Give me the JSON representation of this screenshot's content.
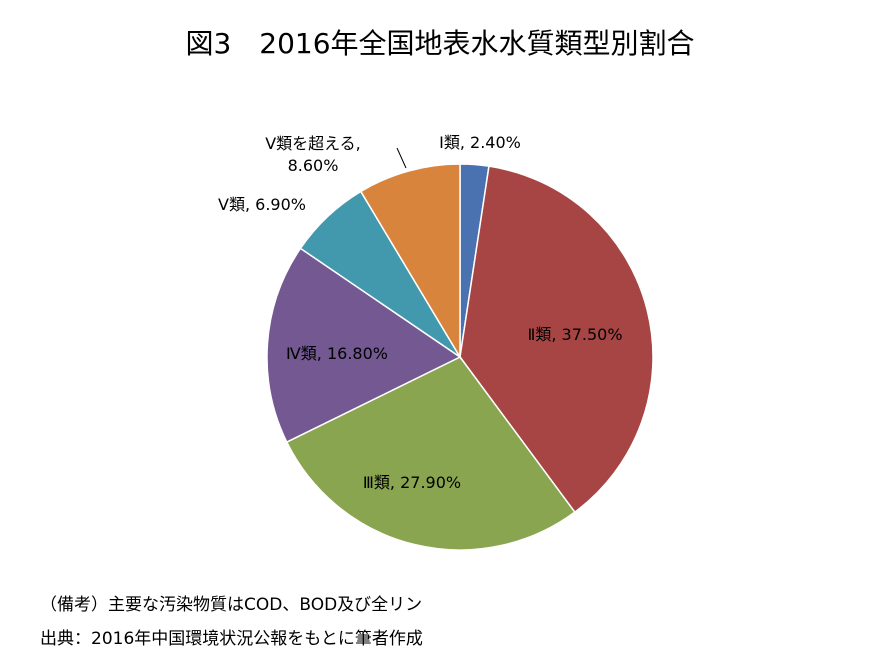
{
  "chart_data": {
    "type": "pie",
    "title": "図3　2016年全国地表水水質類型別割合",
    "values": [
      2.4,
      37.5,
      27.9,
      16.8,
      6.9,
      8.6
    ],
    "value_labels": [
      "Ⅰ類, 2.40%",
      "Ⅱ類, 37.50%",
      "Ⅲ類, 27.90%",
      "Ⅳ類, 16.80%",
      "Ⅴ類, 6.90%",
      "Ⅴ類を超える,\n8.60%"
    ],
    "colors": [
      "#4a72b0",
      "#a64543",
      "#8aa54f",
      "#735891",
      "#4298ad",
      "#d9843d"
    ],
    "notes": [
      "（備考）主要な汚染物質はCOD、BOD及び全リン",
      "出典：2016年中国環境状況公報をもとに筆者作成"
    ]
  }
}
